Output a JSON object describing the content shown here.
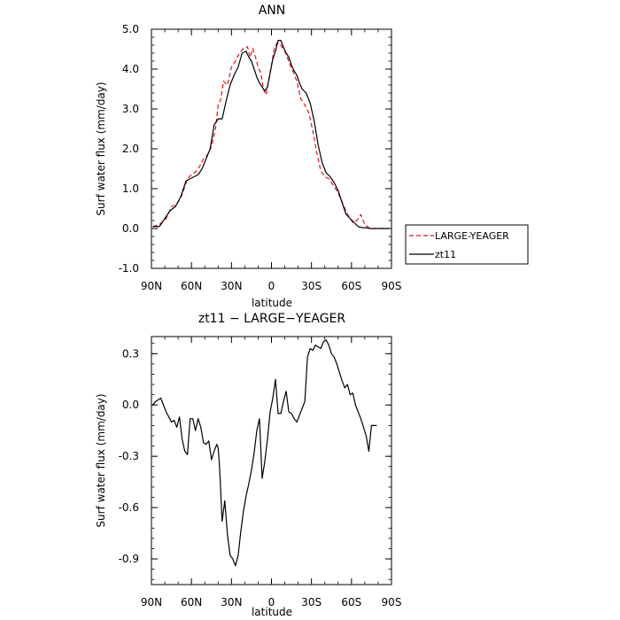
{
  "chart_data": [
    {
      "type": "line",
      "title": "ANN",
      "xlabel": "latitude",
      "ylabel": "Surf water flux (mm/day)",
      "xlim": [
        90,
        -90
      ],
      "ylim": [
        -1.0,
        5.0
      ],
      "x_ticks": [
        90,
        60,
        30,
        0,
        -30,
        -60,
        -90
      ],
      "x_tick_labels": [
        "90N",
        "60N",
        "30N",
        "0",
        "30S",
        "60S",
        "90S"
      ],
      "y_ticks": [
        -1.0,
        0.0,
        1.0,
        2.0,
        3.0,
        4.0,
        5.0
      ],
      "y_tick_labels": [
        "-1.0",
        "0.0",
        "1.0",
        "2.0",
        "3.0",
        "4.0",
        "5.0"
      ],
      "legend": "outside-right",
      "grid": false,
      "series": [
        {
          "name": "LARGE-YEAGER",
          "color": "#e8141b",
          "dash": "dashed",
          "x": [
            89,
            84,
            79,
            75,
            71,
            67,
            63,
            60,
            57,
            54,
            51,
            48,
            45,
            42,
            40,
            38,
            36,
            33,
            30,
            27,
            24,
            21,
            18,
            16,
            14,
            12,
            10,
            8,
            6,
            4,
            2,
            0,
            -2,
            -4,
            -6,
            -8,
            -10,
            -12,
            -14,
            -16,
            -19,
            -22,
            -25,
            -28,
            -31,
            -34,
            -37,
            -40,
            -43,
            -46,
            -49,
            -52,
            -55,
            -58,
            -61,
            -64,
            -67,
            -70,
            -73,
            -76,
            -79,
            -82,
            -85,
            -88
          ],
          "y": [
            0.05,
            0.1,
            0.25,
            0.55,
            0.6,
            0.85,
            1.25,
            1.35,
            1.42,
            1.55,
            1.75,
            1.85,
            2.05,
            2.5,
            3.1,
            3.25,
            3.7,
            3.6,
            4.05,
            4.2,
            4.4,
            4.52,
            4.56,
            4.3,
            4.52,
            4.3,
            4.05,
            3.9,
            3.5,
            3.35,
            3.75,
            4.1,
            4.5,
            4.65,
            4.65,
            4.55,
            4.45,
            4.28,
            4.1,
            3.95,
            3.7,
            3.25,
            3.1,
            2.9,
            2.45,
            1.9,
            1.45,
            1.3,
            1.25,
            1.1,
            0.95,
            0.75,
            0.5,
            0.3,
            0.15,
            0.2,
            0.35,
            0.1,
            0.02,
            0.0,
            0.0,
            0.0,
            0.0,
            0.0
          ]
        },
        {
          "name": "zt11",
          "color": "#000000",
          "dash": "solid",
          "x": [
            89,
            84,
            80,
            76,
            72,
            68,
            64,
            61,
            58,
            55,
            52,
            49,
            46,
            43,
            40,
            37,
            34,
            31,
            28,
            25,
            22,
            19,
            17,
            15,
            13,
            11,
            9,
            7,
            5,
            3,
            1,
            -1,
            -3,
            -5,
            -7,
            -9,
            -11,
            -13,
            -15,
            -17,
            -19,
            -21,
            -23,
            -26,
            -29,
            -32,
            -35,
            -38,
            -41,
            -44,
            -47,
            -50,
            -53,
            -56,
            -59,
            -62,
            -65,
            -68,
            -71,
            -74,
            -77,
            -80,
            -84,
            -88
          ],
          "y": [
            0.05,
            0.05,
            0.25,
            0.45,
            0.55,
            0.8,
            1.2,
            1.25,
            1.3,
            1.35,
            1.5,
            1.75,
            2.0,
            2.6,
            2.75,
            2.75,
            3.2,
            3.6,
            3.85,
            4.05,
            4.4,
            4.45,
            4.3,
            4.2,
            4.0,
            3.8,
            3.65,
            3.55,
            3.45,
            3.55,
            3.9,
            4.25,
            4.45,
            4.72,
            4.72,
            4.55,
            4.4,
            4.3,
            4.1,
            3.95,
            3.85,
            3.65,
            3.5,
            3.4,
            3.15,
            2.7,
            2.1,
            1.65,
            1.4,
            1.3,
            1.15,
            0.95,
            0.65,
            0.35,
            0.25,
            0.15,
            0.05,
            0.02,
            0.02,
            0.0,
            0.0,
            0.0,
            0.0,
            0.0
          ]
        }
      ]
    },
    {
      "type": "line",
      "title": "zt11 − LARGE−YEAGER",
      "xlabel": "latitude",
      "ylabel": "Surf water flux (mm/day)",
      "xlim": [
        90,
        -90
      ],
      "ylim": [
        -1.05,
        0.4
      ],
      "x_ticks": [
        90,
        60,
        30,
        0,
        -30,
        -60,
        -90
      ],
      "x_tick_labels": [
        "90N",
        "60N",
        "30N",
        "0",
        "30S",
        "60S",
        "90S"
      ],
      "y_ticks": [
        -0.9,
        -0.6,
        -0.3,
        0.0,
        0.3
      ],
      "y_tick_labels": [
        "-0.9",
        "-0.6",
        "-0.3",
        "0.0",
        "0.3"
      ],
      "grid": false,
      "series": [
        {
          "name": "",
          "color": "#000000",
          "dash": "solid",
          "x": [
            89,
            87,
            85,
            83,
            81,
            79,
            77,
            75,
            73,
            71,
            69,
            67,
            65,
            63,
            61,
            59,
            57,
            55,
            53,
            51,
            49,
            47,
            45,
            43,
            41,
            40,
            39,
            37,
            35,
            33,
            31,
            29,
            27,
            25,
            23,
            21,
            19,
            17,
            15,
            13,
            11,
            9,
            7,
            5,
            3,
            1,
            -1,
            -3,
            -5,
            -7,
            -9,
            -11,
            -13,
            -15,
            -17,
            -19,
            -21,
            -23,
            -25,
            -27,
            -29,
            -31,
            -33,
            -35,
            -37,
            -39,
            -41,
            -43,
            -45,
            -47,
            -49,
            -51,
            -53,
            -55,
            -57,
            -59,
            -61,
            -63,
            -65,
            -67,
            -69,
            -71,
            -73,
            -75,
            -77,
            -79
          ],
          "y": [
            0.0,
            0.02,
            0.03,
            0.04,
            0.0,
            -0.04,
            -0.07,
            -0.1,
            -0.09,
            -0.13,
            -0.07,
            -0.2,
            -0.27,
            -0.29,
            -0.08,
            -0.08,
            -0.15,
            -0.08,
            -0.13,
            -0.22,
            -0.23,
            -0.21,
            -0.32,
            -0.27,
            -0.23,
            -0.25,
            -0.35,
            -0.68,
            -0.56,
            -0.76,
            -0.88,
            -0.9,
            -0.94,
            -0.88,
            -0.74,
            -0.62,
            -0.53,
            -0.46,
            -0.38,
            -0.28,
            -0.15,
            -0.08,
            -0.43,
            -0.33,
            -0.2,
            -0.04,
            0.04,
            0.15,
            -0.05,
            -0.05,
            0.02,
            0.08,
            -0.04,
            -0.05,
            -0.08,
            -0.1,
            -0.06,
            -0.02,
            0.02,
            0.28,
            0.33,
            0.32,
            0.35,
            0.34,
            0.33,
            0.37,
            0.38,
            0.35,
            0.3,
            0.28,
            0.24,
            0.19,
            0.14,
            0.1,
            0.12,
            0.06,
            0.07,
            0.0,
            -0.04,
            -0.08,
            -0.13,
            -0.18,
            -0.27,
            -0.12,
            -0.12,
            -0.12
          ]
        }
      ]
    }
  ]
}
